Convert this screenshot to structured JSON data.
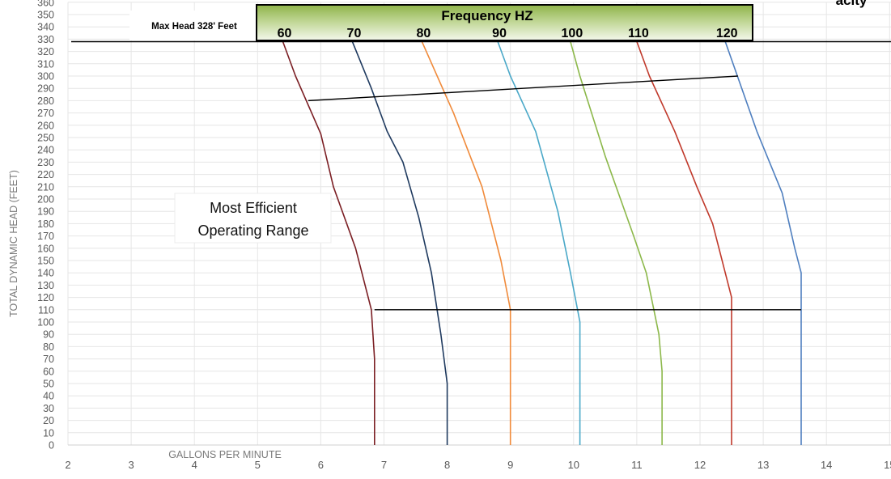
{
  "chart_data": {
    "type": "line",
    "xlabel": "GALLONS PER MINUTE",
    "ylabel": "TOTAL DYNAMIC HEAD (FEET)",
    "xlim": [
      2,
      15
    ],
    "ylim": [
      0,
      360
    ],
    "x_ticks": [
      "2",
      "3",
      "4",
      "5",
      "6",
      "7",
      "8",
      "9",
      "10",
      "11",
      "12",
      "13",
      "14",
      "15"
    ],
    "y_ticks": [
      "0",
      "10",
      "20",
      "30",
      "40",
      "50",
      "60",
      "70",
      "80",
      "90",
      "100",
      "110",
      "120",
      "130",
      "140",
      "150",
      "160",
      "170",
      "180",
      "190",
      "200",
      "210",
      "220",
      "230",
      "240",
      "250",
      "260",
      "270",
      "280",
      "290",
      "300",
      "310",
      "320",
      "330",
      "340",
      "350",
      "360"
    ],
    "grid": true,
    "top_right_text": "acity",
    "max_head": {
      "label": "Max Head 328' Feet",
      "value": 328
    },
    "frequency_box": {
      "title": "Frequency HZ",
      "labels": [
        "60",
        "70",
        "80",
        "90",
        "100",
        "110",
        "120"
      ]
    },
    "annotation": {
      "line1": "Most Efficient",
      "line2": "Operating Range"
    },
    "operating_range": {
      "upper_line": [
        [
          5.8,
          280
        ],
        [
          12.6,
          300
        ]
      ],
      "lower_line": [
        [
          6.85,
          110
        ],
        [
          13.6,
          110
        ]
      ]
    },
    "colors": {
      "60": "#7b1f24",
      "70": "#1f3a5f",
      "80": "#f08a3a",
      "90": "#4aa8c8",
      "100": "#8cb84a",
      "110": "#c0392b",
      "120": "#4f7fbf",
      "header_green": "#9bbb59"
    },
    "series": [
      {
        "name": "60",
        "color_key": "60",
        "points": [
          [
            5.4,
            328
          ],
          [
            5.6,
            300
          ],
          [
            6.0,
            253
          ],
          [
            6.2,
            210
          ],
          [
            6.55,
            160
          ],
          [
            6.8,
            110
          ],
          [
            6.85,
            70
          ],
          [
            6.85,
            0
          ]
        ]
      },
      {
        "name": "70",
        "color_key": "70",
        "points": [
          [
            6.5,
            328
          ],
          [
            6.8,
            290
          ],
          [
            7.05,
            255
          ],
          [
            7.3,
            230
          ],
          [
            7.55,
            185
          ],
          [
            7.75,
            140
          ],
          [
            7.9,
            90
          ],
          [
            8.0,
            50
          ],
          [
            8.0,
            0
          ]
        ]
      },
      {
        "name": "80",
        "color_key": "80",
        "points": [
          [
            7.6,
            328
          ],
          [
            8.1,
            270
          ],
          [
            8.55,
            210
          ],
          [
            8.85,
            150
          ],
          [
            9.0,
            110
          ],
          [
            9.0,
            0
          ]
        ]
      },
      {
        "name": "90",
        "color_key": "90",
        "points": [
          [
            8.8,
            328
          ],
          [
            9.0,
            300
          ],
          [
            9.4,
            255
          ],
          [
            9.75,
            190
          ],
          [
            9.95,
            140
          ],
          [
            10.1,
            100
          ],
          [
            10.1,
            0
          ]
        ]
      },
      {
        "name": "100",
        "color_key": "100",
        "points": [
          [
            9.95,
            328
          ],
          [
            10.1,
            300
          ],
          [
            10.5,
            235
          ],
          [
            10.95,
            170
          ],
          [
            11.15,
            140
          ],
          [
            11.35,
            90
          ],
          [
            11.4,
            60
          ],
          [
            11.4,
            0
          ]
        ]
      },
      {
        "name": "110",
        "color_key": "110",
        "points": [
          [
            11.0,
            328
          ],
          [
            11.2,
            300
          ],
          [
            11.6,
            255
          ],
          [
            11.95,
            210
          ],
          [
            12.2,
            180
          ],
          [
            12.4,
            140
          ],
          [
            12.5,
            120
          ],
          [
            12.5,
            0
          ]
        ]
      },
      {
        "name": "120",
        "color_key": "120",
        "points": [
          [
            12.4,
            328
          ],
          [
            12.9,
            255
          ],
          [
            13.3,
            205
          ],
          [
            13.5,
            160
          ],
          [
            13.6,
            140
          ],
          [
            13.6,
            100
          ],
          [
            13.6,
            0
          ]
        ]
      }
    ]
  }
}
